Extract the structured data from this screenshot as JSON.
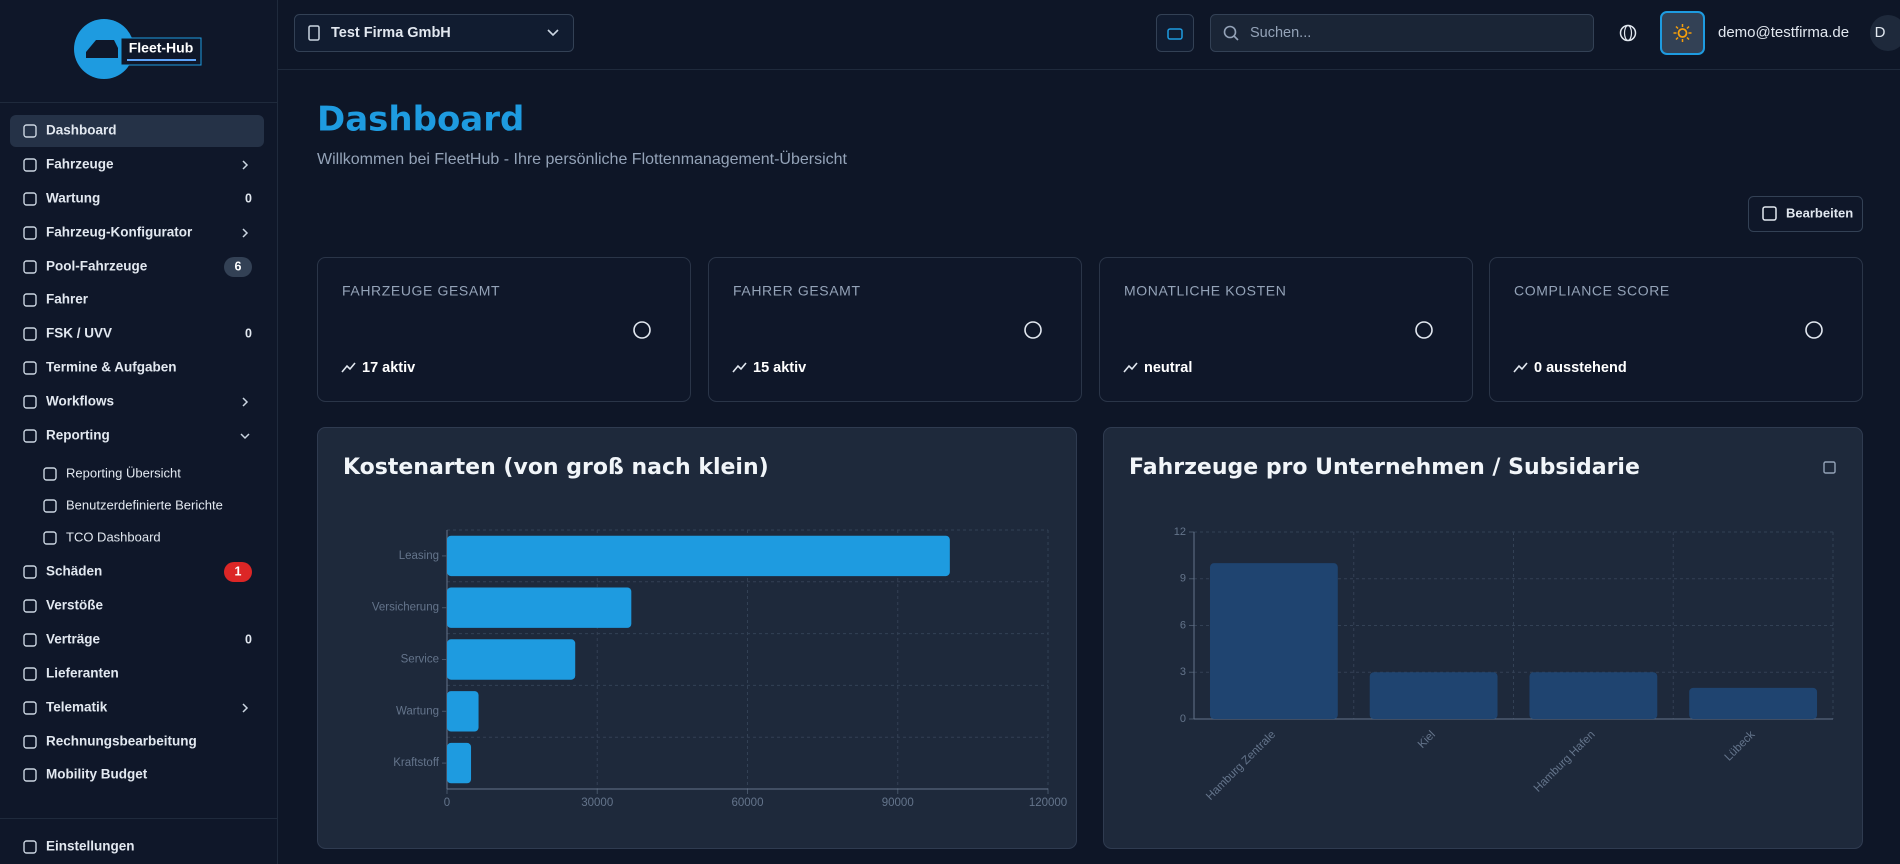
{
  "sidebar": {
    "logo": "Fleet-Hub",
    "nav": [
      {
        "label": "Dashboard",
        "active": true
      },
      {
        "label": "Fahrzeuge",
        "expandable": true
      },
      {
        "label": "Wartung",
        "badge": 0
      },
      {
        "label": "Fahrzeug-Konfigurator",
        "expandable": true
      },
      {
        "label": "Pool-Fahrzeuge",
        "badge": 6,
        "badge_color": "#334155"
      },
      {
        "label": "Fahrer"
      },
      {
        "label": "FSK / UVV",
        "badge": 0
      },
      {
        "label": "Termine & Aufgaben"
      },
      {
        "label": "Workflows",
        "expandable": true
      },
      {
        "label": "Reporting",
        "expandable": true,
        "expanded": true,
        "children": [
          {
            "label": "Reporting Übersicht"
          },
          {
            "label": "Benutzerdefinierte Berichte"
          },
          {
            "label": "TCO Dashboard"
          }
        ]
      },
      {
        "label": "Schäden",
        "badge": 1,
        "badge_color": "#dc2626"
      },
      {
        "label": "Verstöße"
      },
      {
        "label": "Verträge",
        "badge": 0
      },
      {
        "label": "Lieferanten"
      },
      {
        "label": "Telematik",
        "expandable": true
      },
      {
        "label": "Rechnungsbearbeitung"
      },
      {
        "label": "Mobility Budget"
      }
    ],
    "footer": "Einstellungen"
  },
  "header": {
    "company": "Test Firma GmbH",
    "search_placeholder": "Suchen...",
    "user_email": "demo@testfirma.de",
    "avatar": "D"
  },
  "page": {
    "title": "Dashboard",
    "subtitle": "Willkommen bei FleetHub - Ihre persönliche Flottenmanagement-Übersicht",
    "edit_button": "Bearbeiten"
  },
  "cards": [
    {
      "label": "FAHRZEUGE GESAMT",
      "trend": "17 aktiv"
    },
    {
      "label": "FAHRER GESAMT",
      "trend": "15 aktiv"
    },
    {
      "label": "MONATLICHE KOSTEN",
      "trend": "neutral"
    },
    {
      "label": "COMPLIANCE SCORE",
      "trend": "0 ausstehend"
    }
  ],
  "charts": [
    {
      "type": "bar",
      "orientation": "horizontal",
      "title": "Kostenarten (von groß nach klein)",
      "categories": [
        "Leasing",
        "Versicherung",
        "Service",
        "Wartung",
        "Kraftstoff"
      ],
      "values": [
        100400,
        36800,
        25600,
        6300,
        4800
      ],
      "color": "#1e9be0",
      "xlim": [
        0,
        120000
      ],
      "xticks": [
        0,
        30000,
        60000,
        90000,
        120000
      ],
      "grid": true
    },
    {
      "type": "bar",
      "orientation": "vertical",
      "title": "Fahrzeuge pro Unternehmen / Subsidarie",
      "categories": [
        "Hamburg Zentrale",
        "Kiel",
        "Hamburg Hafen",
        "Lübeck"
      ],
      "values": [
        10,
        3,
        3,
        2
      ],
      "color": "#1f4470",
      "ylim": [
        0,
        12
      ],
      "yticks": [
        0,
        3,
        6,
        9,
        12
      ],
      "grid": true
    }
  ]
}
